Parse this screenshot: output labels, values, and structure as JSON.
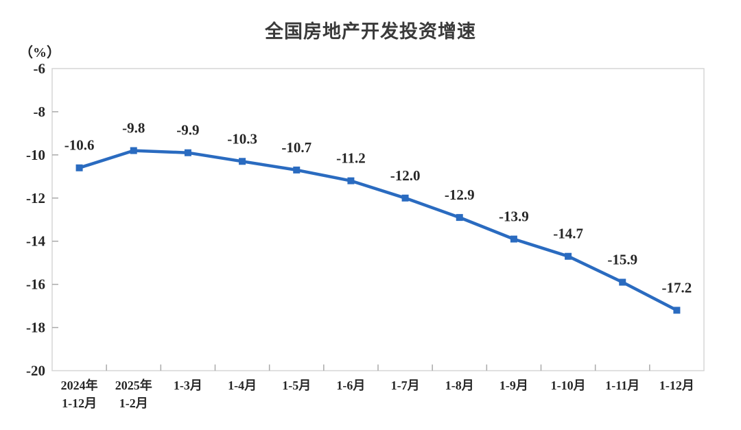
{
  "chart_data": {
    "type": "line",
    "title": "全国房地产开发投资增速",
    "unit_label": "（%）",
    "categories": [
      [
        "2024年",
        "1-12月"
      ],
      [
        "2025年",
        "1-2月"
      ],
      [
        "1-3月"
      ],
      [
        "1-4月"
      ],
      [
        "1-5月"
      ],
      [
        "1-6月"
      ],
      [
        "1-7月"
      ],
      [
        "1-8月"
      ],
      [
        "1-9月"
      ],
      [
        "1-10月"
      ],
      [
        "1-11月"
      ],
      [
        "1-12月"
      ]
    ],
    "values": [
      -10.6,
      -9.8,
      -9.9,
      -10.3,
      -10.7,
      -11.2,
      -12.0,
      -12.9,
      -13.9,
      -14.7,
      -15.9,
      -17.2
    ],
    "value_labels": [
      "-10.6",
      "-9.8",
      "-9.9",
      "-10.3",
      "-10.7",
      "-11.2",
      "-12.0",
      "-12.9",
      "-13.9",
      "-14.7",
      "-15.9",
      "-17.2"
    ],
    "y_ticks": [
      -6,
      -8,
      -10,
      -12,
      -14,
      -16,
      -18,
      -20
    ],
    "y_tick_labels": [
      "-6",
      "-8",
      "-10",
      "-12",
      "-14",
      "-16",
      "-18",
      "-20"
    ],
    "ylim": [
      -20,
      -6
    ],
    "grid": false,
    "legend_position": "none",
    "colors": {
      "line": "#2a6bc0",
      "marker": "#2a6bc0",
      "text": "#262626",
      "title": "#3a3a3a",
      "axis": "#a9a9a9",
      "border": "#d6d6d6"
    }
  }
}
